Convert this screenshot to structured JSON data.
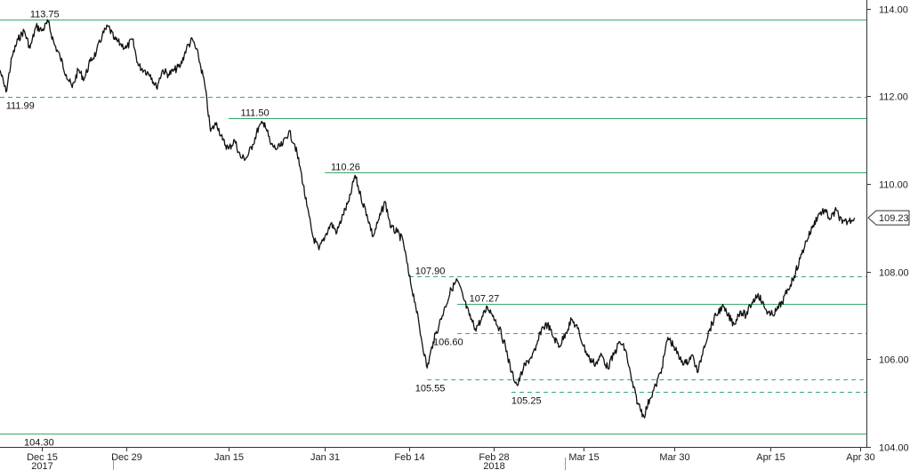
{
  "chart_data": {
    "type": "line",
    "y_range": [
      104.0,
      114.2
    ],
    "x_range": [
      "2017-12-08",
      "2018-05-01"
    ],
    "y_axis_side": "right",
    "grid": false,
    "y_ticks": [
      {
        "value": 104.0,
        "label": "104.00"
      },
      {
        "value": 106.0,
        "label": "106.00"
      },
      {
        "value": 108.0,
        "label": "108.00"
      },
      {
        "value": 110.0,
        "label": "110.00"
      },
      {
        "value": 112.0,
        "label": "112.00"
      },
      {
        "value": 114.0,
        "label": "114.00"
      }
    ],
    "x_ticks": [
      {
        "date": "2017-12-15",
        "label": "Dec 15"
      },
      {
        "date": "2017-12-29",
        "label": "Dec 29"
      },
      {
        "date": "2018-01-15",
        "label": "Jan 15"
      },
      {
        "date": "2018-01-31",
        "label": "Jan 31"
      },
      {
        "date": "2018-02-14",
        "label": "Feb 14"
      },
      {
        "date": "2018-02-28",
        "label": "Feb 28"
      },
      {
        "date": "2018-03-15",
        "label": "Mar 15"
      },
      {
        "date": "2018-03-30",
        "label": "Mar 30"
      },
      {
        "date": "2018-04-15",
        "label": "Apr 15"
      },
      {
        "date": "2018-04-30",
        "label": "Apr 30"
      }
    ],
    "year_labels": [
      {
        "date": "2017-12-15",
        "label": "2017"
      },
      {
        "date": "2018-02-28",
        "label": "2018"
      }
    ],
    "line_color": "#111111",
    "level_color": "#3aa86a",
    "levels": [
      {
        "value": 113.75,
        "label": "113.75",
        "style": "solid",
        "from": "2017-12-08",
        "label_date": "2017-12-13",
        "label_pos": "above"
      },
      {
        "value": 111.99,
        "label": "111.99",
        "style": "dashed",
        "from": "2017-12-08",
        "label_date": "2017-12-09",
        "label_pos": "below"
      },
      {
        "value": 111.5,
        "label": "111.50",
        "style": "solid",
        "from": "2018-01-15",
        "label_date": "2018-01-17",
        "label_pos": "above"
      },
      {
        "value": 110.26,
        "label": "110.26",
        "style": "solid",
        "from": "2018-01-31",
        "label_date": "2018-02-01",
        "label_pos": "above"
      },
      {
        "value": 107.9,
        "label": "107.90",
        "style": "dashed",
        "from": "2018-02-14",
        "label_date": "2018-02-15",
        "label_pos": "above"
      },
      {
        "value": 107.27,
        "label": "107.27",
        "style": "solid",
        "from": "2018-02-22",
        "label_date": "2018-02-24",
        "label_pos": "above"
      },
      {
        "value": 106.6,
        "label": "106.60",
        "style": "dashed",
        "from": "2018-02-22",
        "label_date": "2018-02-18",
        "label_pos": "below"
      },
      {
        "value": 105.55,
        "label": "105.55",
        "style": "dashed",
        "from": "2018-02-17",
        "label_date": "2018-02-15",
        "label_pos": "below"
      },
      {
        "value": 105.25,
        "label": "105.25",
        "style": "dashed",
        "from": "2018-03-03",
        "label_date": "2018-03-03",
        "label_pos": "below"
      },
      {
        "value": 104.3,
        "label": "104.30",
        "style": "solid",
        "from": "2017-12-08",
        "label_date": "2017-12-12",
        "label_pos": "below"
      }
    ],
    "last_value": {
      "value": 109.23,
      "label": "109.23"
    },
    "series": [
      {
        "points": [
          [
            "2017-12-08",
            112.6
          ],
          [
            "2017-12-09",
            112.1
          ],
          [
            "2017-12-10",
            112.9
          ],
          [
            "2017-12-11",
            113.3
          ],
          [
            "2017-12-12",
            113.5
          ],
          [
            "2017-12-13",
            113.1
          ],
          [
            "2017-12-14",
            113.6
          ],
          [
            "2017-12-15",
            113.5
          ],
          [
            "2017-12-16",
            113.7
          ],
          [
            "2017-12-17",
            113.2
          ],
          [
            "2017-12-18",
            112.9
          ],
          [
            "2017-12-19",
            112.5
          ],
          [
            "2017-12-20",
            112.2
          ],
          [
            "2017-12-21",
            112.6
          ],
          [
            "2017-12-22",
            112.4
          ],
          [
            "2017-12-23",
            112.8
          ],
          [
            "2017-12-24",
            113.0
          ],
          [
            "2017-12-25",
            113.4
          ],
          [
            "2017-12-26",
            113.6
          ],
          [
            "2017-12-27",
            113.3
          ],
          [
            "2017-12-28",
            113.2
          ],
          [
            "2017-12-29",
            113.1
          ],
          [
            "2017-12-30",
            113.3
          ],
          [
            "2017-12-31",
            112.7
          ],
          [
            "2018-01-01",
            112.6
          ],
          [
            "2018-01-02",
            112.5
          ],
          [
            "2018-01-03",
            112.2
          ],
          [
            "2018-01-04",
            112.6
          ],
          [
            "2018-01-05",
            112.5
          ],
          [
            "2018-01-06",
            112.6
          ],
          [
            "2018-01-07",
            112.7
          ],
          [
            "2018-01-08",
            113.1
          ],
          [
            "2018-01-09",
            113.3
          ],
          [
            "2018-01-10",
            112.9
          ],
          [
            "2018-01-11",
            112.3
          ],
          [
            "2018-01-12",
            111.2
          ],
          [
            "2018-01-13",
            111.4
          ],
          [
            "2018-01-14",
            111.0
          ],
          [
            "2018-01-15",
            110.8
          ],
          [
            "2018-01-16",
            111.0
          ],
          [
            "2018-01-17",
            110.6
          ],
          [
            "2018-01-18",
            110.6
          ],
          [
            "2018-01-19",
            110.9
          ],
          [
            "2018-01-20",
            111.3
          ],
          [
            "2018-01-21",
            111.4
          ],
          [
            "2018-01-22",
            110.9
          ],
          [
            "2018-01-23",
            110.8
          ],
          [
            "2018-01-24",
            110.9
          ],
          [
            "2018-01-25",
            111.2
          ],
          [
            "2018-01-26",
            110.9
          ],
          [
            "2018-01-27",
            110.3
          ],
          [
            "2018-01-28",
            109.5
          ],
          [
            "2018-01-29",
            108.8
          ],
          [
            "2018-01-30",
            108.5
          ],
          [
            "2018-01-31",
            108.8
          ],
          [
            "2018-02-01",
            109.1
          ],
          [
            "2018-02-02",
            108.9
          ],
          [
            "2018-02-03",
            109.3
          ],
          [
            "2018-02-04",
            109.6
          ],
          [
            "2018-02-05",
            110.2
          ],
          [
            "2018-02-06",
            109.7
          ],
          [
            "2018-02-07",
            109.3
          ],
          [
            "2018-02-08",
            108.8
          ],
          [
            "2018-02-09",
            109.2
          ],
          [
            "2018-02-10",
            109.6
          ],
          [
            "2018-02-11",
            109.0
          ],
          [
            "2018-02-12",
            108.9
          ],
          [
            "2018-02-13",
            108.7
          ],
          [
            "2018-02-14",
            107.9
          ],
          [
            "2018-02-15",
            107.3
          ],
          [
            "2018-02-16",
            106.5
          ],
          [
            "2018-02-17",
            105.8
          ],
          [
            "2018-02-18",
            106.4
          ],
          [
            "2018-02-19",
            106.8
          ],
          [
            "2018-02-20",
            107.2
          ],
          [
            "2018-02-21",
            107.6
          ],
          [
            "2018-02-22",
            107.8
          ],
          [
            "2018-02-23",
            107.4
          ],
          [
            "2018-02-24",
            107.0
          ],
          [
            "2018-02-25",
            106.7
          ],
          [
            "2018-02-26",
            106.9
          ],
          [
            "2018-02-27",
            107.2
          ],
          [
            "2018-02-28",
            107.0
          ],
          [
            "2018-03-01",
            106.7
          ],
          [
            "2018-03-02",
            106.3
          ],
          [
            "2018-03-03",
            105.7
          ],
          [
            "2018-03-04",
            105.4
          ],
          [
            "2018-03-05",
            105.8
          ],
          [
            "2018-03-06",
            106.0
          ],
          [
            "2018-03-07",
            106.2
          ],
          [
            "2018-03-08",
            106.7
          ],
          [
            "2018-03-09",
            106.8
          ],
          [
            "2018-03-10",
            106.5
          ],
          [
            "2018-03-11",
            106.3
          ],
          [
            "2018-03-12",
            106.6
          ],
          [
            "2018-03-13",
            106.9
          ],
          [
            "2018-03-14",
            106.7
          ],
          [
            "2018-03-15",
            106.3
          ],
          [
            "2018-03-16",
            106.0
          ],
          [
            "2018-03-17",
            105.9
          ],
          [
            "2018-03-18",
            106.1
          ],
          [
            "2018-03-19",
            105.8
          ],
          [
            "2018-03-20",
            106.1
          ],
          [
            "2018-03-21",
            106.4
          ],
          [
            "2018-03-22",
            106.2
          ],
          [
            "2018-03-23",
            105.5
          ],
          [
            "2018-03-24",
            105.0
          ],
          [
            "2018-03-25",
            104.7
          ],
          [
            "2018-03-26",
            105.1
          ],
          [
            "2018-03-27",
            105.4
          ],
          [
            "2018-03-28",
            105.8
          ],
          [
            "2018-03-29",
            106.5
          ],
          [
            "2018-03-30",
            106.3
          ],
          [
            "2018-03-31",
            106.0
          ],
          [
            "2018-04-01",
            105.9
          ],
          [
            "2018-04-02",
            106.1
          ],
          [
            "2018-04-03",
            105.7
          ],
          [
            "2018-04-04",
            106.3
          ],
          [
            "2018-04-05",
            106.7
          ],
          [
            "2018-04-06",
            107.0
          ],
          [
            "2018-04-07",
            107.2
          ],
          [
            "2018-04-08",
            107.0
          ],
          [
            "2018-04-09",
            106.8
          ],
          [
            "2018-04-10",
            107.1
          ],
          [
            "2018-04-11",
            107.0
          ],
          [
            "2018-04-12",
            107.3
          ],
          [
            "2018-04-13",
            107.5
          ],
          [
            "2018-04-14",
            107.2
          ],
          [
            "2018-04-15",
            107.0
          ],
          [
            "2018-04-16",
            107.1
          ],
          [
            "2018-04-17",
            107.3
          ],
          [
            "2018-04-18",
            107.6
          ],
          [
            "2018-04-19",
            107.9
          ],
          [
            "2018-04-20",
            108.3
          ],
          [
            "2018-04-21",
            108.7
          ],
          [
            "2018-04-22",
            109.0
          ],
          [
            "2018-04-23",
            109.3
          ],
          [
            "2018-04-24",
            109.4
          ],
          [
            "2018-04-25",
            109.2
          ],
          [
            "2018-04-26",
            109.4
          ],
          [
            "2018-04-27",
            109.1
          ],
          [
            "2018-04-28",
            109.15
          ],
          [
            "2018-04-29",
            109.23
          ]
        ]
      }
    ]
  }
}
